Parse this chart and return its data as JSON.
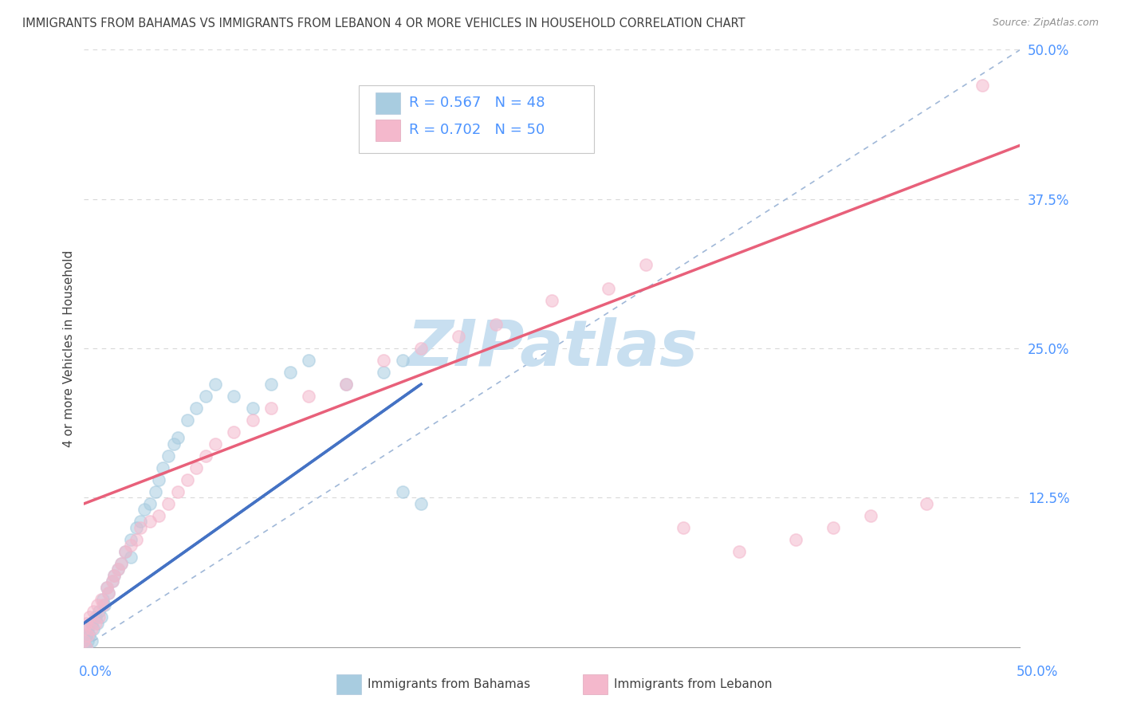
{
  "title": "IMMIGRANTS FROM BAHAMAS VS IMMIGRANTS FROM LEBANON 4 OR MORE VEHICLES IN HOUSEHOLD CORRELATION CHART",
  "source": "Source: ZipAtlas.com",
  "ylabel": "4 or more Vehicles in Household",
  "ytick_vals": [
    0.125,
    0.25,
    0.375,
    0.5
  ],
  "ytick_labels": [
    "12.5%",
    "25.0%",
    "37.5%",
    "50.0%"
  ],
  "xrange": [
    0.0,
    0.5
  ],
  "yrange": [
    0.0,
    0.5
  ],
  "bahamas_color": "#a8cce0",
  "lebanon_color": "#f4b8cc",
  "bahamas_line_color": "#4472c4",
  "lebanon_line_color": "#e8607a",
  "ref_line_color": "#a0b8d8",
  "grid_color": "#d8d8d8",
  "watermark_color": "#c8dff0",
  "title_color": "#404040",
  "axis_label_color": "#4d94ff",
  "source_color": "#909090",
  "legend_text_color": "#4d94ff",
  "dot_size": 120,
  "dot_alpha": 0.55,
  "dot_lw": 1.2,
  "bahamas_x": [
    0.0,
    0.001,
    0.001,
    0.002,
    0.002,
    0.003,
    0.004,
    0.004,
    0.005,
    0.006,
    0.007,
    0.008,
    0.009,
    0.01,
    0.011,
    0.012,
    0.013,
    0.015,
    0.016,
    0.018,
    0.02,
    0.022,
    0.025,
    0.025,
    0.028,
    0.03,
    0.032,
    0.035,
    0.038,
    0.04,
    0.042,
    0.045,
    0.048,
    0.05,
    0.055,
    0.06,
    0.065,
    0.07,
    0.08,
    0.09,
    0.1,
    0.11,
    0.12,
    0.14,
    0.16,
    0.17,
    0.17,
    0.18
  ],
  "bahamas_y": [
    0.0,
    0.0,
    0.01,
    0.005,
    0.015,
    0.01,
    0.02,
    0.005,
    0.015,
    0.025,
    0.02,
    0.03,
    0.025,
    0.04,
    0.035,
    0.05,
    0.045,
    0.055,
    0.06,
    0.065,
    0.07,
    0.08,
    0.09,
    0.075,
    0.1,
    0.105,
    0.115,
    0.12,
    0.13,
    0.14,
    0.15,
    0.16,
    0.17,
    0.175,
    0.19,
    0.2,
    0.21,
    0.22,
    0.21,
    0.2,
    0.22,
    0.23,
    0.24,
    0.22,
    0.23,
    0.24,
    0.13,
    0.12
  ],
  "lebanon_x": [
    0.0,
    0.0,
    0.001,
    0.001,
    0.002,
    0.003,
    0.004,
    0.005,
    0.006,
    0.007,
    0.008,
    0.009,
    0.01,
    0.012,
    0.013,
    0.015,
    0.016,
    0.018,
    0.02,
    0.022,
    0.025,
    0.028,
    0.03,
    0.035,
    0.04,
    0.045,
    0.05,
    0.055,
    0.06,
    0.065,
    0.07,
    0.08,
    0.09,
    0.1,
    0.12,
    0.14,
    0.16,
    0.18,
    0.2,
    0.22,
    0.25,
    0.28,
    0.3,
    0.32,
    0.35,
    0.38,
    0.4,
    0.42,
    0.45,
    0.48
  ],
  "lebanon_y": [
    0.005,
    0.015,
    0.0,
    0.02,
    0.01,
    0.025,
    0.015,
    0.03,
    0.02,
    0.035,
    0.025,
    0.04,
    0.035,
    0.05,
    0.045,
    0.055,
    0.06,
    0.065,
    0.07,
    0.08,
    0.085,
    0.09,
    0.1,
    0.105,
    0.11,
    0.12,
    0.13,
    0.14,
    0.15,
    0.16,
    0.17,
    0.18,
    0.19,
    0.2,
    0.21,
    0.22,
    0.24,
    0.25,
    0.26,
    0.27,
    0.29,
    0.3,
    0.32,
    0.1,
    0.08,
    0.09,
    0.1,
    0.11,
    0.12,
    0.47
  ],
  "bahamas_line_x0": 0.0,
  "bahamas_line_x1": 0.18,
  "bahamas_line_y0": 0.02,
  "bahamas_line_y1": 0.22,
  "lebanon_line_x0": 0.0,
  "lebanon_line_x1": 0.5,
  "lebanon_line_y0": 0.12,
  "lebanon_line_y1": 0.42
}
